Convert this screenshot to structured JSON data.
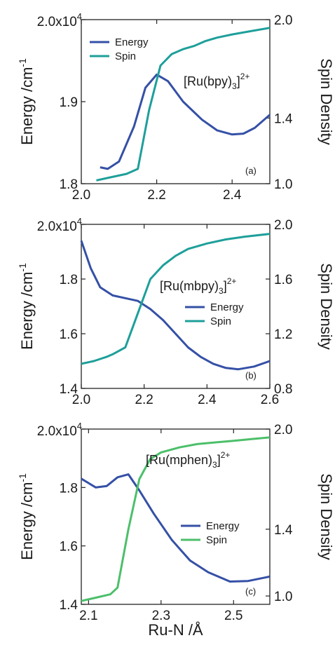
{
  "colors": {
    "energy": "#3550a6",
    "spin_a": "#1e9f9a",
    "spin_b": "#1e9f9a",
    "spin_c": "#4cbf6a"
  },
  "shared_xlabel": "Ru-N /Å",
  "chart_data": [
    {
      "type": "line",
      "panel_label": "(a)",
      "annotation": {
        "main": "[Ru(bpy)",
        "sub": "3",
        "close": "]",
        "sup": "2+"
      },
      "ylabel": "Energy /cm",
      "ylabel_sup": "-1",
      "y2label": "Spin Density",
      "xlim": [
        2.0,
        2.5
      ],
      "ylim": [
        18000,
        20000
      ],
      "y2lim": [
        1.0,
        2.0
      ],
      "xticks": [
        "2.0",
        "2.2",
        "2.4"
      ],
      "yticks": [
        {
          "v": 18000,
          "label": "1.8"
        },
        {
          "v": 19000,
          "label": "1.9"
        },
        {
          "v": 20000,
          "label": "2.0x10",
          "sup": "4"
        }
      ],
      "y2ticks": [
        "1.0",
        "1.4",
        "2.0"
      ],
      "legend_position": "top-left",
      "series": [
        {
          "name": "Energy",
          "axis": "left",
          "x": [
            2.05,
            2.07,
            2.1,
            2.14,
            2.17,
            2.2,
            2.23,
            2.27,
            2.32,
            2.36,
            2.4,
            2.43,
            2.46,
            2.5
          ],
          "y": [
            18200,
            18180,
            18270,
            18700,
            19170,
            19330,
            19250,
            19000,
            18780,
            18650,
            18600,
            18610,
            18680,
            18840
          ]
        },
        {
          "name": "Spin",
          "axis": "right",
          "x": [
            2.04,
            2.08,
            2.12,
            2.15,
            2.18,
            2.21,
            2.24,
            2.27,
            2.3,
            2.33,
            2.36,
            2.4,
            2.45,
            2.5
          ],
          "y": [
            1.02,
            1.04,
            1.06,
            1.09,
            1.45,
            1.72,
            1.79,
            1.82,
            1.84,
            1.87,
            1.89,
            1.91,
            1.93,
            1.95
          ]
        }
      ]
    },
    {
      "type": "line",
      "panel_label": "(b)",
      "annotation": {
        "main": "[Ru(mbpy)",
        "sub": "3",
        "close": "]",
        "sup": "2+"
      },
      "ylabel": "Energy /cm",
      "ylabel_sup": "-1",
      "y2label": "Spin Density",
      "xlim": [
        2.0,
        2.6
      ],
      "ylim": [
        14000,
        20000
      ],
      "y2lim": [
        0.8,
        2.0
      ],
      "xticks": [
        "2.0",
        "2.2",
        "2.4",
        "2.6"
      ],
      "yticks": [
        {
          "v": 14000,
          "label": "1.4"
        },
        {
          "v": 16000,
          "label": "1.6"
        },
        {
          "v": 18000,
          "label": "1.8"
        },
        {
          "v": 20000,
          "label": "2.0x10",
          "sup": "4"
        }
      ],
      "y2ticks": [
        "0.8",
        "1.2",
        "1.6",
        "2.0"
      ],
      "legend_position": "bottom-right",
      "series": [
        {
          "name": "Energy",
          "axis": "left",
          "x": [
            2.0,
            2.03,
            2.06,
            2.1,
            2.14,
            2.18,
            2.22,
            2.26,
            2.3,
            2.34,
            2.38,
            2.42,
            2.46,
            2.5,
            2.55,
            2.6
          ],
          "y": [
            19400,
            18400,
            17700,
            17400,
            17300,
            17200,
            16900,
            16500,
            16000,
            15500,
            15150,
            14900,
            14750,
            14700,
            14800,
            15000
          ]
        },
        {
          "name": "Spin",
          "axis": "right",
          "x": [
            2.0,
            2.04,
            2.08,
            2.1,
            2.14,
            2.18,
            2.22,
            2.26,
            2.3,
            2.34,
            2.4,
            2.46,
            2.52,
            2.6
          ],
          "y": [
            0.98,
            1.0,
            1.03,
            1.05,
            1.1,
            1.35,
            1.6,
            1.7,
            1.77,
            1.82,
            1.86,
            1.89,
            1.91,
            1.93
          ]
        }
      ]
    },
    {
      "type": "line",
      "panel_label": "(c)",
      "annotation": {
        "main": "[Ru(mphen)",
        "sub": "3",
        "close": "]",
        "sup": "2+"
      },
      "xlabel": "Ru-N /Å",
      "ylabel": "Energy /cm",
      "ylabel_sup": "-1",
      "y2label": "Spin Density",
      "xlim": [
        2.08,
        2.6
      ],
      "ylim": [
        14000,
        20000
      ],
      "y2lim": [
        0.95,
        2.0
      ],
      "xticks": [
        "2.1",
        "2.3",
        "2.5"
      ],
      "yticks": [
        {
          "v": 14000,
          "label": "1.4"
        },
        {
          "v": 16000,
          "label": "1.6"
        },
        {
          "v": 18000,
          "label": "1.8"
        },
        {
          "v": 20000,
          "label": "2.0x10",
          "sup": "4"
        }
      ],
      "y2ticks": [
        "1.0",
        "1.4",
        "2.0"
      ],
      "legend_position": "bottom-right",
      "series": [
        {
          "name": "Energy",
          "axis": "left",
          "x": [
            2.08,
            2.12,
            2.15,
            2.18,
            2.21,
            2.24,
            2.28,
            2.33,
            2.38,
            2.43,
            2.49,
            2.54,
            2.6
          ],
          "y": [
            18300,
            18000,
            18050,
            18350,
            18450,
            17900,
            17100,
            16200,
            15500,
            15100,
            14780,
            14800,
            14950
          ]
        },
        {
          "name": "Spin",
          "axis": "right",
          "x": [
            2.08,
            2.12,
            2.16,
            2.18,
            2.21,
            2.24,
            2.27,
            2.3,
            2.35,
            2.4,
            2.45,
            2.5,
            2.55,
            2.6
          ],
          "y": [
            0.97,
            0.99,
            1.01,
            1.05,
            1.4,
            1.7,
            1.82,
            1.86,
            1.89,
            1.91,
            1.92,
            1.93,
            1.94,
            1.95
          ]
        }
      ]
    }
  ]
}
